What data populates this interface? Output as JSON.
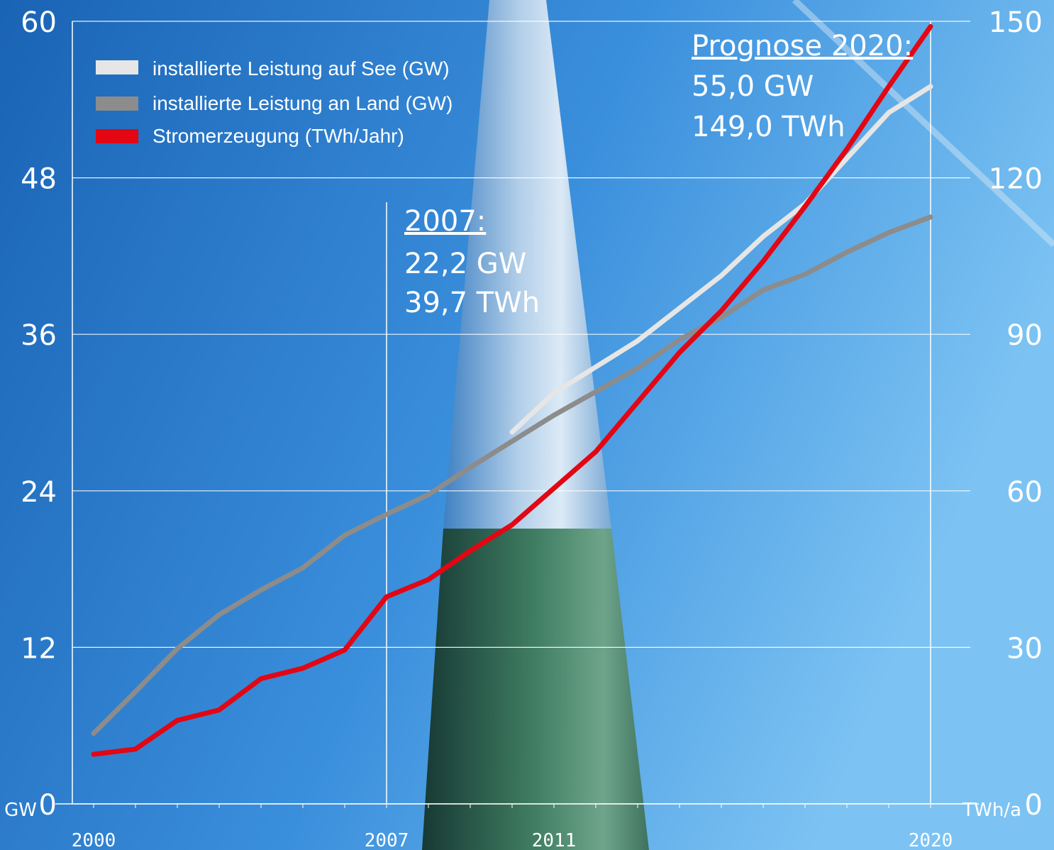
{
  "chart_data": {
    "type": "line",
    "title": "",
    "x_ticks": [
      "2000",
      "2007",
      "2011",
      "2020"
    ],
    "x_range": [
      2000,
      2020
    ],
    "y_left": {
      "unit": "GW",
      "range": [
        0,
        60
      ],
      "ticks": [
        "0",
        "12",
        "24",
        "36",
        "48",
        "60"
      ]
    },
    "y_right": {
      "unit": "TWh/a",
      "range": [
        0,
        150
      ],
      "ticks": [
        "0",
        "30",
        "60",
        "90",
        "120",
        "150"
      ]
    },
    "grid": true,
    "legend_position": "top-left",
    "series": [
      {
        "name": "installierte Leistung auf See (GW)",
        "axis": "left",
        "color": "#e6e6e6",
        "x": [
          2010,
          2011,
          2012,
          2013,
          2014,
          2015,
          2016,
          2017,
          2018,
          2019,
          2020
        ],
        "y": [
          28.5,
          31.5,
          33.5,
          35.5,
          38.0,
          40.5,
          43.5,
          46.0,
          49.5,
          53.0,
          55.0
        ]
      },
      {
        "name": "installierte Leistung an Land (GW)",
        "axis": "left",
        "color": "#8c8c8c",
        "x": [
          2000,
          2001,
          2002,
          2003,
          2004,
          2005,
          2006,
          2007,
          2008,
          2009,
          2010,
          2011,
          2012,
          2013,
          2014,
          2015,
          2016,
          2017,
          2018,
          2019,
          2020
        ],
        "y": [
          5.4,
          8.6,
          11.9,
          14.5,
          16.4,
          18.1,
          20.6,
          22.2,
          23.7,
          25.8,
          27.8,
          29.8,
          31.6,
          33.4,
          35.6,
          37.3,
          39.4,
          40.6,
          42.3,
          43.8,
          45.0
        ]
      },
      {
        "name": "Stromerzeugung (TWh/Jahr)",
        "axis": "right",
        "color": "#e30613",
        "x": [
          2000,
          2001,
          2002,
          2003,
          2004,
          2005,
          2006,
          2007,
          2008,
          2009,
          2010,
          2011,
          2012,
          2013,
          2014,
          2015,
          2016,
          2017,
          2018,
          2019,
          2020
        ],
        "y": [
          9.5,
          10.5,
          16.0,
          18.0,
          24.0,
          26.0,
          29.5,
          39.7,
          43.0,
          48.5,
          53.5,
          60.5,
          67.5,
          77.0,
          86.5,
          94.5,
          104.0,
          114.5,
          125.5,
          137.5,
          149.0
        ]
      }
    ],
    "annotations": [
      {
        "heading": "2007:",
        "lines": [
          "22,2 GW",
          "39,7 TWh"
        ],
        "x": 2007
      },
      {
        "heading": "Prognose 2020:",
        "lines": [
          "55,0 GW",
          "149,0 TWh"
        ],
        "x": 2020
      }
    ]
  }
}
